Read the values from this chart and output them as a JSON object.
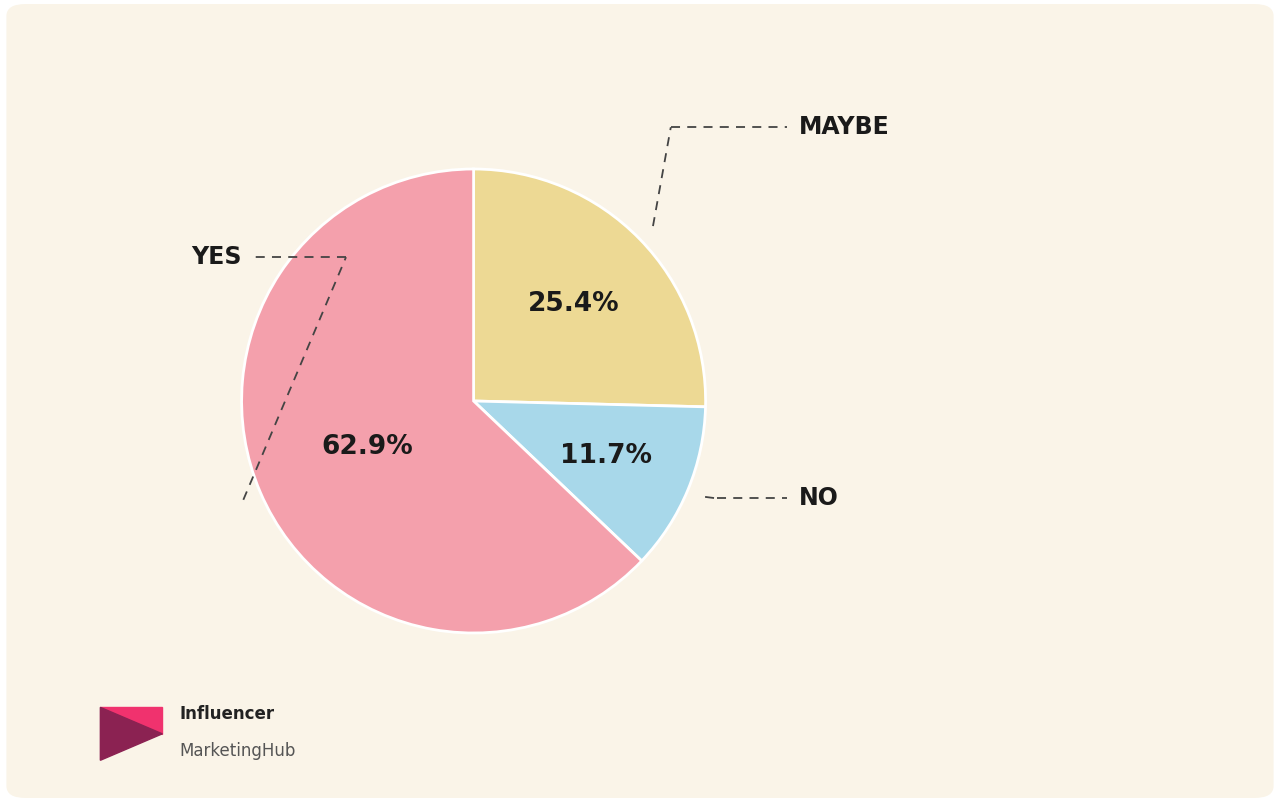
{
  "slices": [
    {
      "label": "MAYBE",
      "value": 25.4,
      "color": "#EDD994",
      "pct_text": "25.4%"
    },
    {
      "label": "NO",
      "value": 11.7,
      "color": "#A8D8EA",
      "pct_text": "11.7%"
    },
    {
      "label": "YES",
      "value": 62.9,
      "color": "#F4A0AC",
      "pct_text": "62.9%"
    }
  ],
  "bg_color": "#FAF4E8",
  "card_color": "#FAF4E8",
  "label_fontsize": 17,
  "pct_fontsize": 19,
  "label_color": "#1a1a1a",
  "pct_color": "#1a1a1a",
  "startangle": 90,
  "logo_text_influencer": "Influencer",
  "logo_text_hub": "MarketingHub",
  "logo_color_light": "#F0326E",
  "logo_color_dark": "#8B2252"
}
